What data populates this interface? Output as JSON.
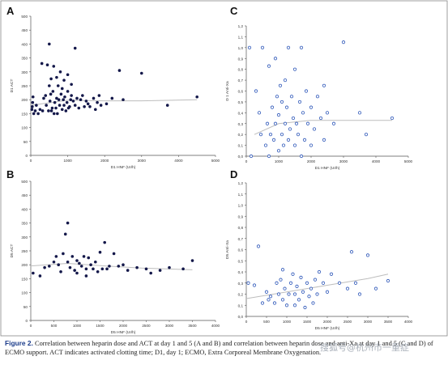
{
  "caption": {
    "label": "Figure 2.",
    "text": "Correlation between heparin dose and ACT at day 1 and 5 (A and B) and correlation between heparin dose and anti-Xa at day 1 and 5 (C and D) of ECMO support. ACT indicates activated clotting time; D1, day 1; ECMO, Extra Corporeal Membrane Oxygenation."
  },
  "watermark": "搜狐号@杭州市一重症",
  "chart_data": [
    {
      "panel": "A",
      "type": "scatter",
      "xlabel": "D1 HNF (UI/h)",
      "ylabel": "D1 ACT",
      "xlim": [
        0,
        5000
      ],
      "ylim": [
        0,
        500
      ],
      "xticks": [
        0,
        1000,
        2000,
        3000,
        4000,
        5000
      ],
      "yticks": [
        0,
        50,
        100,
        150,
        200,
        250,
        300,
        350,
        400,
        450,
        500
      ],
      "fit": [
        [
          0,
          180
        ],
        [
          1000,
          198
        ],
        [
          2000,
          196
        ],
        [
          3000,
          196
        ],
        [
          4500,
          200
        ]
      ],
      "points": [
        [
          30,
          165
        ],
        [
          40,
          175
        ],
        [
          50,
          190
        ],
        [
          60,
          210
        ],
        [
          80,
          150
        ],
        [
          120,
          160
        ],
        [
          150,
          180
        ],
        [
          200,
          150
        ],
        [
          250,
          165
        ],
        [
          300,
          330
        ],
        [
          320,
          160
        ],
        [
          350,
          205
        ],
        [
          400,
          215
        ],
        [
          420,
          180
        ],
        [
          450,
          325
        ],
        [
          480,
          160
        ],
        [
          500,
          250
        ],
        [
          500,
          400
        ],
        [
          520,
          195
        ],
        [
          540,
          220
        ],
        [
          550,
          275
        ],
        [
          560,
          160
        ],
        [
          580,
          170
        ],
        [
          600,
          230
        ],
        [
          620,
          320
        ],
        [
          630,
          150
        ],
        [
          650,
          190
        ],
        [
          680,
          170
        ],
        [
          700,
          205
        ],
        [
          700,
          280
        ],
        [
          720,
          150
        ],
        [
          740,
          250
        ],
        [
          760,
          200
        ],
        [
          780,
          180
        ],
        [
          800,
          300
        ],
        [
          820,
          220
        ],
        [
          850,
          165
        ],
        [
          850,
          240
        ],
        [
          880,
          200
        ],
        [
          900,
          180
        ],
        [
          900,
          270
        ],
        [
          920,
          210
        ],
        [
          950,
          160
        ],
        [
          980,
          190
        ],
        [
          1000,
          230
        ],
        [
          1000,
          290
        ],
        [
          1020,
          170
        ],
        [
          1050,
          175
        ],
        [
          1080,
          200
        ],
        [
          1100,
          255
        ],
        [
          1100,
          215
        ],
        [
          1150,
          195
        ],
        [
          1200,
          180
        ],
        [
          1200,
          385
        ],
        [
          1250,
          205
        ],
        [
          1300,
          170
        ],
        [
          1350,
          200
        ],
        [
          1400,
          215
        ],
        [
          1450,
          175
        ],
        [
          1500,
          195
        ],
        [
          1550,
          185
        ],
        [
          1600,
          175
        ],
        [
          1700,
          205
        ],
        [
          1750,
          165
        ],
        [
          1800,
          190
        ],
        [
          1850,
          215
        ],
        [
          1900,
          180
        ],
        [
          2050,
          185
        ],
        [
          2200,
          205
        ],
        [
          2400,
          305
        ],
        [
          2500,
          200
        ],
        [
          3000,
          295
        ],
        [
          3700,
          180
        ],
        [
          4500,
          210
        ]
      ]
    },
    {
      "panel": "B",
      "type": "scatter",
      "xlabel": "D5 HNF (UI/h)",
      "ylabel": "D5 ACT",
      "xlim": [
        0,
        4000
      ],
      "ylim": [
        0,
        500
      ],
      "xticks": [
        0,
        500,
        1000,
        1500,
        2000,
        2500,
        3000,
        3500,
        4000
      ],
      "yticks": [
        0,
        50,
        100,
        150,
        200,
        250,
        300,
        350,
        400,
        450,
        500
      ],
      "fit": [
        [
          0,
          196
        ],
        [
          800,
          205
        ],
        [
          1600,
          196
        ],
        [
          2400,
          188
        ],
        [
          3500,
          182
        ]
      ],
      "points": [
        [
          50,
          170
        ],
        [
          200,
          160
        ],
        [
          300,
          190
        ],
        [
          400,
          195
        ],
        [
          500,
          210
        ],
        [
          550,
          230
        ],
        [
          600,
          200
        ],
        [
          650,
          175
        ],
        [
          700,
          240
        ],
        [
          750,
          310
        ],
        [
          800,
          350
        ],
        [
          800,
          210
        ],
        [
          850,
          190
        ],
        [
          900,
          230
        ],
        [
          950,
          180
        ],
        [
          1000,
          215
        ],
        [
          1000,
          170
        ],
        [
          1050,
          205
        ],
        [
          1100,
          195
        ],
        [
          1150,
          230
        ],
        [
          1200,
          185
        ],
        [
          1200,
          160
        ],
        [
          1250,
          225
        ],
        [
          1300,
          200
        ],
        [
          1350,
          185
        ],
        [
          1400,
          210
        ],
        [
          1450,
          175
        ],
        [
          1500,
          245
        ],
        [
          1550,
          185
        ],
        [
          1600,
          280
        ],
        [
          1650,
          185
        ],
        [
          1700,
          195
        ],
        [
          1800,
          240
        ],
        [
          1900,
          195
        ],
        [
          2000,
          200
        ],
        [
          2100,
          180
        ],
        [
          2300,
          190
        ],
        [
          2500,
          185
        ],
        [
          2600,
          170
        ],
        [
          2800,
          180
        ],
        [
          3000,
          190
        ],
        [
          3300,
          185
        ],
        [
          3500,
          215
        ]
      ]
    },
    {
      "panel": "C",
      "type": "scatter",
      "xlabel": "D1 HNF (UI/h)",
      "ylabel": "D 1 Anti-Xa",
      "xlim": [
        0,
        5000
      ],
      "ylim": [
        0,
        1.2
      ],
      "xticks": [
        0,
        1000,
        2000,
        3000,
        4000,
        5000
      ],
      "yticks": [
        0,
        0.1,
        0.2,
        0.3,
        0.4,
        0.5,
        0.6,
        0.7,
        0.8,
        0.9,
        1.0,
        1.1,
        1.2
      ],
      "fit": [
        [
          250,
          0.2
        ],
        [
          1000,
          0.3
        ],
        [
          2000,
          0.33
        ],
        [
          3000,
          0.33
        ],
        [
          4500,
          0.33
        ]
      ],
      "points": [
        [
          100,
          1.0
        ],
        [
          150,
          0.0
        ],
        [
          300,
          0.6
        ],
        [
          400,
          0.4
        ],
        [
          450,
          0.2
        ],
        [
          500,
          1.0
        ],
        [
          600,
          0.1
        ],
        [
          650,
          0.3
        ],
        [
          700,
          0.0
        ],
        [
          700,
          0.83
        ],
        [
          750,
          0.2
        ],
        [
          800,
          0.45
        ],
        [
          850,
          0.15
        ],
        [
          900,
          0.9
        ],
        [
          900,
          0.3
        ],
        [
          950,
          0.55
        ],
        [
          1000,
          0.05
        ],
        [
          1000,
          0.38
        ],
        [
          1050,
          0.65
        ],
        [
          1100,
          0.2
        ],
        [
          1100,
          0.5
        ],
        [
          1150,
          0.1
        ],
        [
          1200,
          0.3
        ],
        [
          1200,
          0.7
        ],
        [
          1250,
          0.45
        ],
        [
          1300,
          0.15
        ],
        [
          1300,
          1.0
        ],
        [
          1350,
          0.25
        ],
        [
          1400,
          0.55
        ],
        [
          1450,
          0.35
        ],
        [
          1500,
          0.1
        ],
        [
          1500,
          0.8
        ],
        [
          1550,
          0.3
        ],
        [
          1600,
          0.2
        ],
        [
          1650,
          0.5
        ],
        [
          1700,
          0.0
        ],
        [
          1700,
          1.0
        ],
        [
          1750,
          0.4
        ],
        [
          1800,
          0.15
        ],
        [
          1850,
          0.6
        ],
        [
          1900,
          0.3
        ],
        [
          2000,
          0.1
        ],
        [
          2000,
          0.45
        ],
        [
          2100,
          0.25
        ],
        [
          2200,
          0.55
        ],
        [
          2300,
          0.35
        ],
        [
          2400,
          0.15
        ],
        [
          2400,
          0.65
        ],
        [
          2500,
          0.4
        ],
        [
          2700,
          0.3
        ],
        [
          3000,
          1.05
        ],
        [
          3500,
          0.4
        ],
        [
          3700,
          0.2
        ],
        [
          4500,
          0.35
        ]
      ]
    },
    {
      "panel": "D",
      "type": "scatter",
      "xlabel": "D5 HNF (UI/h)",
      "ylabel": "D5 Anti-Xa",
      "xlim": [
        0,
        4000
      ],
      "ylim": [
        0,
        1.2
      ],
      "xticks": [
        0,
        500,
        1000,
        1500,
        2000,
        2500,
        3000,
        3500,
        4000
      ],
      "yticks": [
        0,
        0.1,
        0.2,
        0.3,
        0.4,
        0.5,
        0.6,
        0.7,
        0.8,
        0.9,
        1.0,
        1.1,
        1.2
      ],
      "fit": [
        [
          0,
          0.16
        ],
        [
          1000,
          0.22
        ],
        [
          2000,
          0.28
        ],
        [
          3000,
          0.34
        ],
        [
          3500,
          0.38
        ]
      ],
      "points": [
        [
          50,
          0.3
        ],
        [
          200,
          0.28
        ],
        [
          300,
          0.63
        ],
        [
          400,
          0.12
        ],
        [
          500,
          0.22
        ],
        [
          550,
          0.15
        ],
        [
          600,
          0.18
        ],
        [
          700,
          0.12
        ],
        [
          750,
          0.3
        ],
        [
          800,
          0.2
        ],
        [
          850,
          0.33
        ],
        [
          900,
          0.15
        ],
        [
          900,
          0.42
        ],
        [
          950,
          0.25
        ],
        [
          1000,
          0.1
        ],
        [
          1050,
          0.2
        ],
        [
          1100,
          0.3
        ],
        [
          1150,
          0.38
        ],
        [
          1200,
          0.2
        ],
        [
          1200,
          0.1
        ],
        [
          1250,
          0.27
        ],
        [
          1300,
          0.15
        ],
        [
          1350,
          0.35
        ],
        [
          1400,
          0.22
        ],
        [
          1450,
          0.08
        ],
        [
          1500,
          0.3
        ],
        [
          1550,
          0.18
        ],
        [
          1600,
          0.25
        ],
        [
          1650,
          0.12
        ],
        [
          1700,
          0.33
        ],
        [
          1750,
          0.2
        ],
        [
          1800,
          0.4
        ],
        [
          1900,
          0.3
        ],
        [
          2000,
          0.22
        ],
        [
          2100,
          0.38
        ],
        [
          2300,
          0.3
        ],
        [
          2500,
          0.25
        ],
        [
          2600,
          0.58
        ],
        [
          2700,
          0.3
        ],
        [
          2800,
          0.2
        ],
        [
          3000,
          0.55
        ],
        [
          3200,
          0.25
        ],
        [
          3500,
          0.32
        ]
      ]
    }
  ]
}
